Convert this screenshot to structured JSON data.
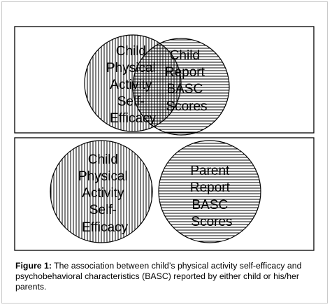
{
  "panels": [
    {
      "circles": [
        {
          "lines": [
            "Child",
            "Physical",
            "Activity",
            "Self-",
            "Efficacy"
          ],
          "pattern": "vertical-lines"
        },
        {
          "lines": [
            "Child",
            "Report",
            "BASC",
            "Scores"
          ],
          "pattern": "horizontal-lines"
        }
      ],
      "relationship": "overlapping"
    },
    {
      "circles": [
        {
          "lines": [
            "Child",
            "Physical",
            "Activity",
            "Self-",
            "Efficacy"
          ],
          "pattern": "vertical-lines"
        },
        {
          "lines": [
            "Parent",
            "Report",
            "BASC",
            "Scores"
          ],
          "pattern": "horizontal-lines"
        }
      ],
      "relationship": "separate"
    }
  ],
  "caption": {
    "label": "Figure 1:",
    "text": "The association between child’s physical activity self-efficacy and psychobehavioral characteristics (BASC) reported by either child or his/her parents."
  },
  "colors": {
    "line": "#000000",
    "background": "#ffffff",
    "frame": "#c9c9c9"
  }
}
